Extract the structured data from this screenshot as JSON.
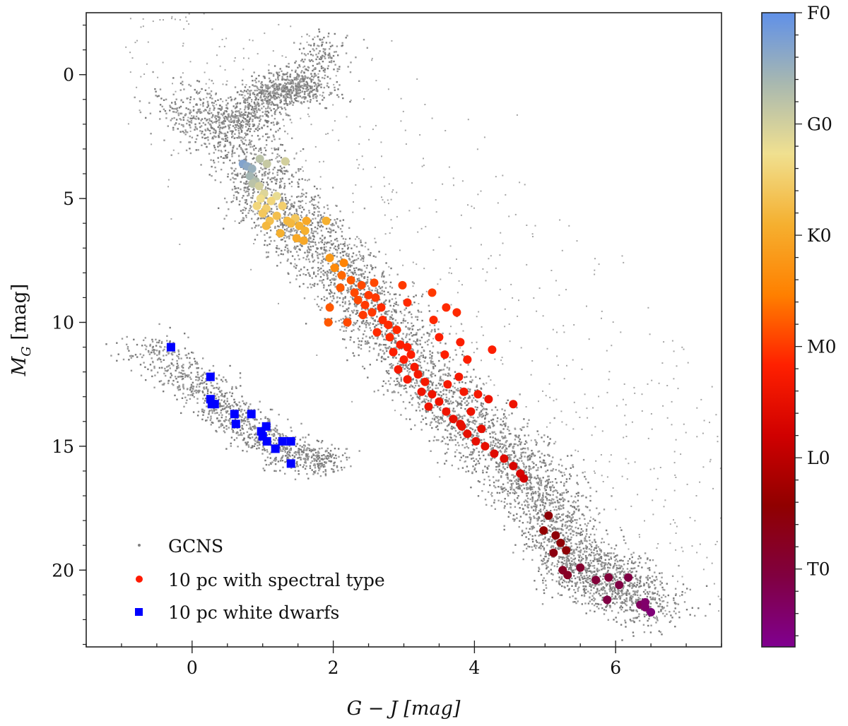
{
  "chart_data": {
    "type": "scatter",
    "title": "",
    "xlabel": "G − J [mag]",
    "ylabel": "M_G [mag]",
    "ylabel_main": "M",
    "ylabel_sub": "G",
    "ylabel_unit": " [mag]",
    "xlim": [
      -1.5,
      7.5
    ],
    "ylim": [
      23.1,
      -2.5
    ],
    "y_inverted": true,
    "x_ticks": [
      0,
      2,
      4,
      6
    ],
    "y_ticks": [
      0,
      5,
      10,
      15,
      20
    ],
    "legend_position": "bottom-left",
    "legend": [
      {
        "label": "GCNS",
        "marker": "dot",
        "color": "#808080"
      },
      {
        "label": "10 pc with spectral type",
        "marker": "circle",
        "color": "#ff1a00"
      },
      {
        "label": "10 pc white dwarfs",
        "marker": "square",
        "color": "#0000ff"
      }
    ],
    "colorbar": {
      "ticks": [
        "F0",
        "G0",
        "K0",
        "M0",
        "L0",
        "T0"
      ],
      "tick_values": [
        0,
        10,
        20,
        30,
        40,
        50
      ],
      "range": [
        0,
        57
      ],
      "colors": [
        "#6090e8",
        "#a8b8b0",
        "#f0e090",
        "#f5b030",
        "#ff8000",
        "#ff2000",
        "#d00000",
        "#900000",
        "#800040",
        "#800090"
      ]
    },
    "series": [
      {
        "name": "GCNS",
        "kind": "density",
        "sequences": [
          {
            "name": "main sequence",
            "path": [
              [
                -0.2,
                1.0
              ],
              [
                0.6,
                2.5
              ],
              [
                1.1,
                5.0
              ],
              [
                1.6,
                6.5
              ],
              [
                2.2,
                8.2
              ],
              [
                2.7,
                10.0
              ],
              [
                3.2,
                12.0
              ],
              [
                3.8,
                13.8
              ],
              [
                4.4,
                15.2
              ],
              [
                4.9,
                16.7
              ],
              [
                5.2,
                18.5
              ],
              [
                5.5,
                20.0
              ],
              [
                6.0,
                20.6
              ],
              [
                6.6,
                21.5
              ]
            ]
          },
          {
            "name": "giant branch",
            "path": [
              [
                0.6,
                2.0
              ],
              [
                0.9,
                1.4
              ],
              [
                1.2,
                0.7
              ],
              [
                1.6,
                0.0
              ],
              [
                2.0,
                -1.4
              ]
            ]
          },
          {
            "name": "red clump",
            "path": [
              [
                1.0,
                0.7
              ],
              [
                1.4,
                0.5
              ],
              [
                1.8,
                0.7
              ]
            ]
          },
          {
            "name": "white dwarf sequence",
            "path": [
              [
                -0.7,
                10.8
              ],
              [
                0.0,
                12.3
              ],
              [
                0.5,
                13.5
              ],
              [
                1.0,
                14.6
              ],
              [
                1.5,
                15.4
              ],
              [
                1.9,
                15.6
              ]
            ]
          }
        ]
      },
      {
        "name": "10 pc with spectral type",
        "x_mg_spt": [
          [
            0.72,
            3.6,
            3
          ],
          [
            0.78,
            3.7,
            4
          ],
          [
            0.85,
            3.8,
            5
          ],
          [
            0.82,
            4.1,
            6
          ],
          [
            0.9,
            4.3,
            7
          ],
          [
            0.86,
            4.4,
            8
          ],
          [
            0.96,
            3.4,
            8
          ],
          [
            1.06,
            3.6,
            9
          ],
          [
            1.32,
            3.5,
            10
          ],
          [
            0.95,
            4.5,
            10
          ],
          [
            1.02,
            4.8,
            11
          ],
          [
            1.2,
            4.9,
            12
          ],
          [
            0.97,
            5.0,
            13
          ],
          [
            1.12,
            5.1,
            14
          ],
          [
            0.92,
            5.3,
            14
          ],
          [
            1.05,
            5.4,
            15
          ],
          [
            1.28,
            5.3,
            15
          ],
          [
            1.46,
            5.8,
            16
          ],
          [
            1.0,
            5.6,
            16
          ],
          [
            1.2,
            5.7,
            17
          ],
          [
            1.1,
            5.9,
            17
          ],
          [
            1.35,
            5.9,
            18
          ],
          [
            1.05,
            6.1,
            18
          ],
          [
            1.4,
            6.0,
            18
          ],
          [
            1.52,
            6.1,
            19
          ],
          [
            1.6,
            6.3,
            19
          ],
          [
            1.25,
            6.4,
            19
          ],
          [
            1.48,
            6.6,
            20
          ],
          [
            1.58,
            6.7,
            20
          ],
          [
            1.62,
            5.9,
            20
          ],
          [
            1.9,
            5.9,
            19
          ],
          [
            1.95,
            7.4,
            22
          ],
          [
            2.02,
            7.8,
            24
          ],
          [
            2.15,
            7.6,
            25
          ],
          [
            2.12,
            8.1,
            27
          ],
          [
            2.25,
            8.3,
            28
          ],
          [
            2.1,
            8.6,
            28
          ],
          [
            2.3,
            8.8,
            29
          ],
          [
            2.4,
            8.5,
            29
          ],
          [
            2.35,
            9.1,
            29
          ],
          [
            2.45,
            9.3,
            30
          ],
          [
            2.5,
            8.9,
            30
          ],
          [
            2.6,
            9.0,
            30
          ],
          [
            2.55,
            9.6,
            30
          ],
          [
            2.68,
            9.4,
            31
          ],
          [
            2.42,
            9.7,
            30
          ],
          [
            2.7,
            9.9,
            31
          ],
          [
            2.78,
            10.1,
            31
          ],
          [
            2.62,
            10.4,
            31
          ],
          [
            2.8,
            10.6,
            31
          ],
          [
            2.9,
            10.3,
            31
          ],
          [
            2.95,
            10.9,
            32
          ],
          [
            3.05,
            11.0,
            32
          ],
          [
            2.85,
            11.2,
            32
          ],
          [
            3.0,
            11.5,
            32
          ],
          [
            3.1,
            11.3,
            32
          ],
          [
            3.15,
            11.8,
            33
          ],
          [
            2.92,
            11.9,
            33
          ],
          [
            3.2,
            12.1,
            33
          ],
          [
            3.05,
            12.3,
            33
          ],
          [
            3.3,
            12.4,
            33
          ],
          [
            3.25,
            12.8,
            34
          ],
          [
            3.4,
            12.9,
            34
          ],
          [
            3.5,
            13.2,
            34
          ],
          [
            3.35,
            13.4,
            34
          ],
          [
            3.6,
            13.6,
            34
          ],
          [
            3.7,
            13.9,
            35
          ],
          [
            3.82,
            14.2,
            35
          ],
          [
            3.9,
            14.5,
            35
          ],
          [
            4.02,
            14.8,
            35
          ],
          [
            4.15,
            15.0,
            35
          ],
          [
            4.28,
            15.3,
            36
          ],
          [
            4.42,
            15.5,
            36
          ],
          [
            4.55,
            15.8,
            37
          ],
          [
            4.65,
            16.1,
            37
          ],
          [
            4.7,
            16.3,
            38
          ],
          [
            2.58,
            8.4,
            29
          ],
          [
            2.98,
            8.5,
            30
          ],
          [
            3.4,
            8.8,
            30
          ],
          [
            3.05,
            9.2,
            31
          ],
          [
            3.6,
            9.4,
            31
          ],
          [
            3.42,
            9.9,
            31
          ],
          [
            3.75,
            9.6,
            31
          ],
          [
            3.5,
            10.6,
            32
          ],
          [
            3.8,
            10.8,
            32
          ],
          [
            3.58,
            11.3,
            32
          ],
          [
            3.9,
            11.5,
            32
          ],
          [
            4.25,
            11.1,
            32
          ],
          [
            3.78,
            12.2,
            33
          ],
          [
            3.62,
            12.5,
            33
          ],
          [
            3.85,
            12.8,
            33
          ],
          [
            4.05,
            12.9,
            33
          ],
          [
            4.2,
            13.1,
            34
          ],
          [
            4.55,
            13.3,
            34
          ],
          [
            3.95,
            13.6,
            34
          ],
          [
            3.8,
            14.1,
            35
          ],
          [
            4.1,
            14.3,
            35
          ],
          [
            1.95,
            9.4,
            28
          ],
          [
            1.93,
            10.0,
            28
          ],
          [
            2.2,
            10.0,
            29
          ],
          [
            4.98,
            18.4,
            44
          ],
          [
            5.05,
            17.8,
            45
          ],
          [
            5.15,
            18.6,
            45
          ],
          [
            5.22,
            18.9,
            45
          ],
          [
            5.3,
            19.2,
            45
          ],
          [
            5.12,
            19.3,
            46
          ],
          [
            5.25,
            20.0,
            48
          ],
          [
            5.32,
            20.2,
            48
          ],
          [
            5.5,
            19.9,
            49
          ],
          [
            5.72,
            20.4,
            50
          ],
          [
            5.9,
            20.3,
            50
          ],
          [
            6.05,
            20.6,
            51
          ],
          [
            6.18,
            20.3,
            51
          ],
          [
            5.88,
            21.2,
            51
          ],
          [
            6.35,
            21.4,
            53
          ],
          [
            6.42,
            21.5,
            54
          ],
          [
            6.5,
            21.7,
            55
          ],
          [
            6.42,
            21.3,
            54
          ]
        ]
      },
      {
        "name": "10 pc white dwarfs",
        "x_mg": [
          [
            -0.3,
            11.0
          ],
          [
            0.26,
            12.2
          ],
          [
            0.26,
            13.1
          ],
          [
            0.28,
            13.3
          ],
          [
            0.32,
            13.3
          ],
          [
            0.6,
            13.7
          ],
          [
            0.62,
            14.1
          ],
          [
            0.84,
            13.7
          ],
          [
            0.98,
            14.4
          ],
          [
            1.05,
            14.2
          ],
          [
            1.0,
            14.6
          ],
          [
            1.06,
            14.8
          ],
          [
            1.28,
            14.8
          ],
          [
            1.4,
            14.8
          ],
          [
            1.18,
            15.1
          ],
          [
            1.4,
            15.7
          ]
        ]
      }
    ]
  }
}
